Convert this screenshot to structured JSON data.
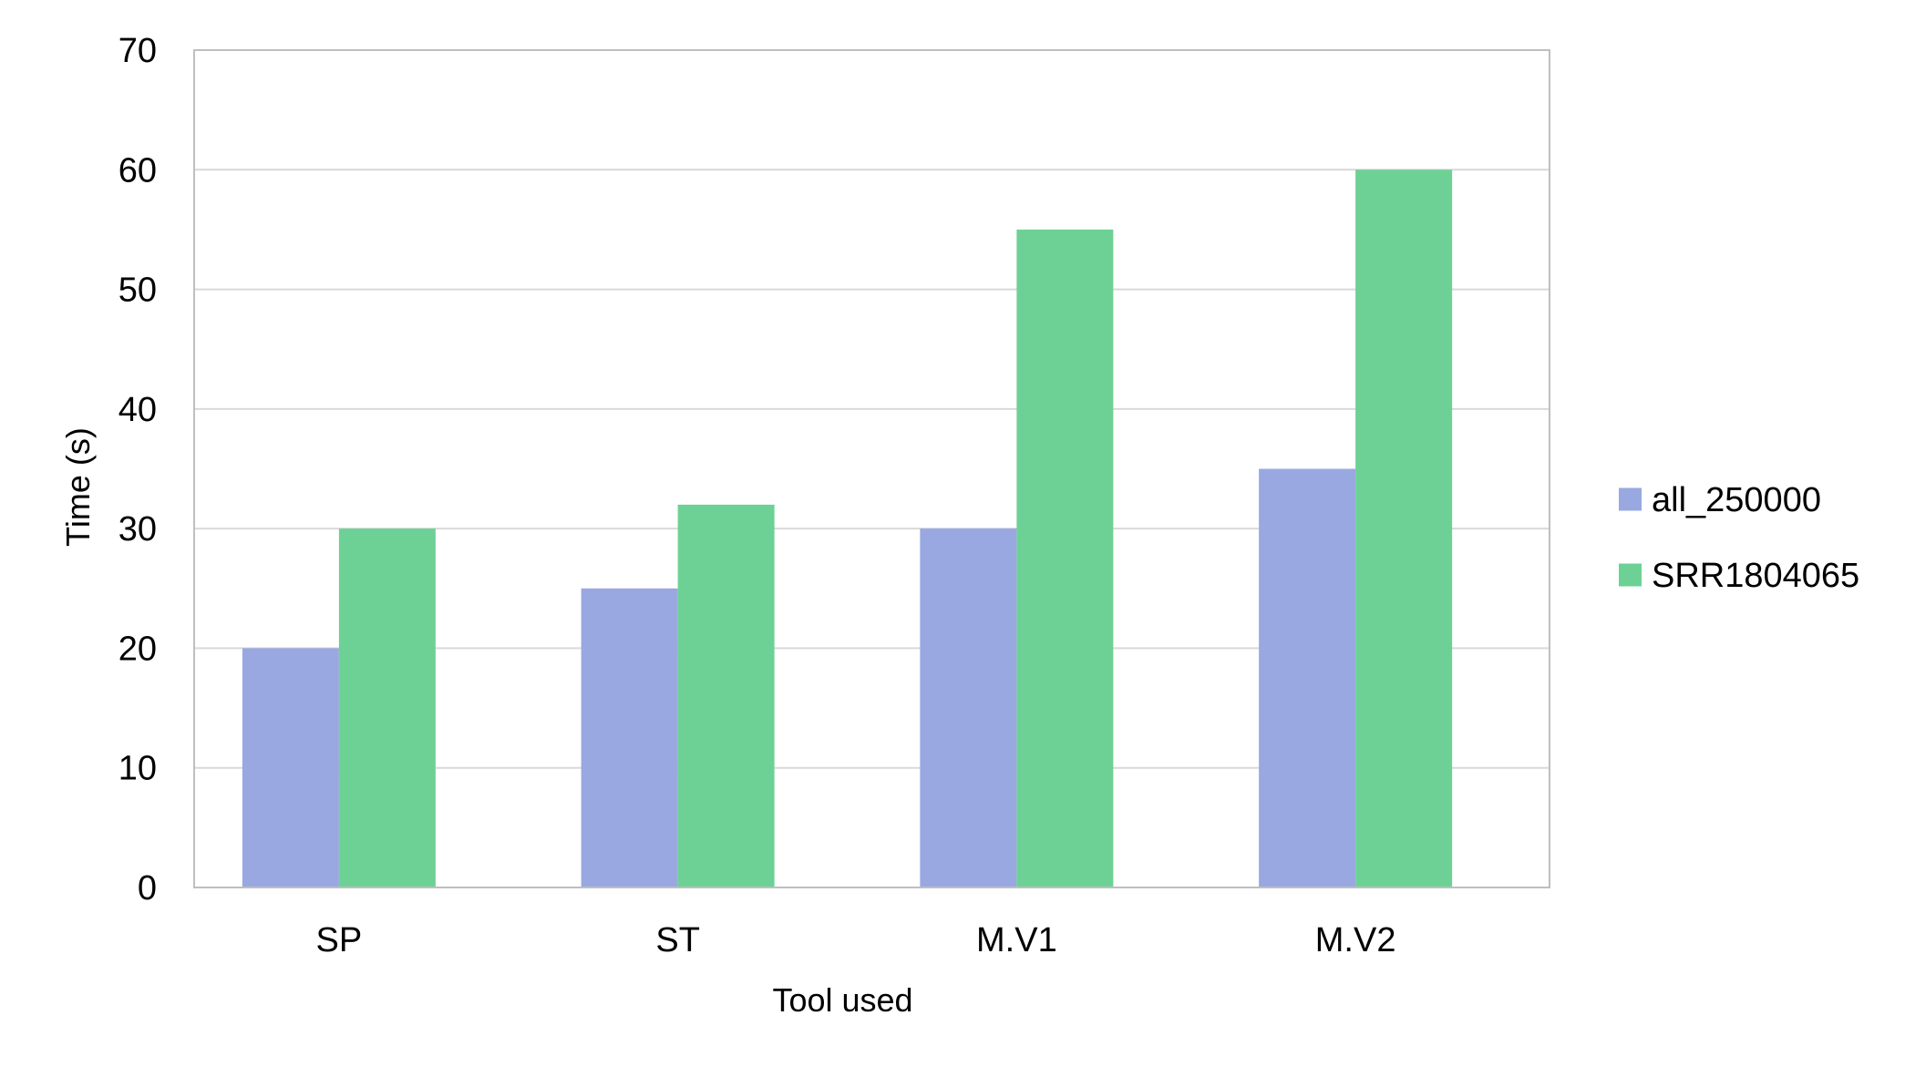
{
  "chart_data": {
    "type": "bar",
    "title": "",
    "xlabel": "Tool used",
    "ylabel": "Time (s)",
    "categories": [
      "SP",
      "ST",
      "M.V1",
      "M.V2"
    ],
    "series": [
      {
        "name": "all_250000",
        "values": [
          20,
          25,
          30,
          35
        ],
        "color": "#99a8e0"
      },
      {
        "name": "SRR1804065",
        "values": [
          30,
          32,
          55,
          60
        ],
        "color": "#6dd196"
      }
    ],
    "ylim": [
      0,
      70
    ],
    "yticks": [
      0,
      10,
      20,
      30,
      40,
      50,
      60,
      70
    ],
    "grid": true,
    "legend_position": "right",
    "gridline_color": "#d9d9d9",
    "frame_color": "#bfbfbf"
  }
}
